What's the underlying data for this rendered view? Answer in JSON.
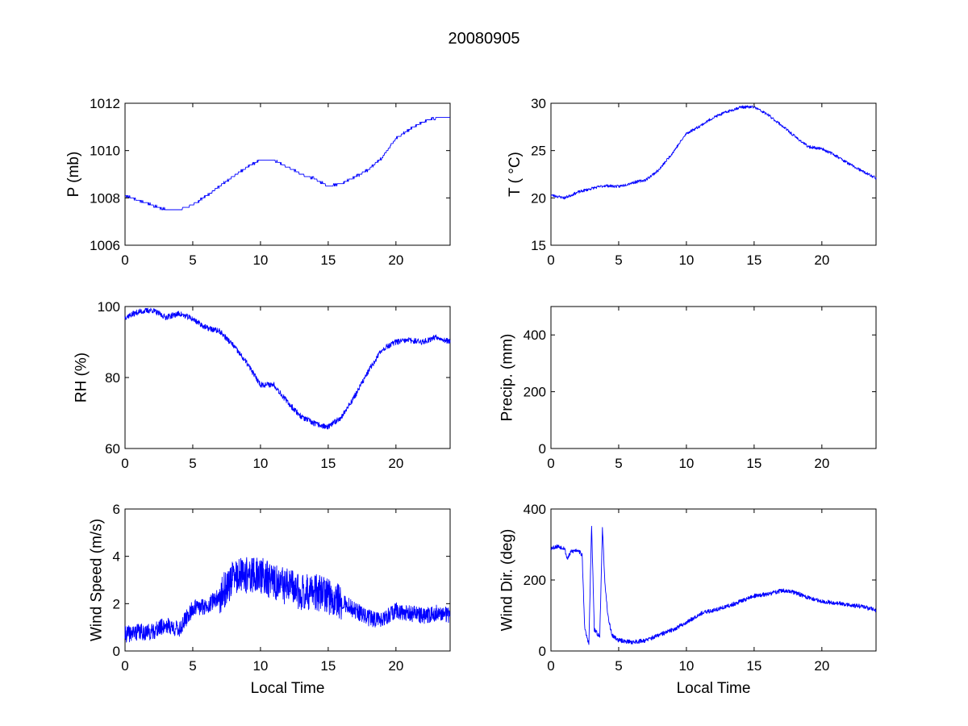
{
  "figure": {
    "title": "20080905"
  },
  "colors": {
    "line": "#0000ff",
    "axes": "#000000",
    "background": "#ffffff"
  },
  "chart_data": [
    {
      "id": "pressure",
      "type": "line",
      "panel": "row1-left",
      "title": "",
      "xlabel": "",
      "ylabel": "P (mb)",
      "xlim": [
        0,
        24
      ],
      "ylim": [
        1006,
        1012
      ],
      "xticks": [
        0,
        5,
        10,
        15,
        20
      ],
      "yticks": [
        1006,
        1008,
        1010,
        1012
      ],
      "grid": false,
      "x": [
        0,
        1,
        2,
        3,
        4,
        5,
        6,
        7,
        8,
        9,
        10,
        11,
        12,
        13,
        14,
        15,
        16,
        17,
        18,
        19,
        20,
        21,
        22,
        23,
        24
      ],
      "y": [
        1008.1,
        1007.9,
        1007.7,
        1007.5,
        1007.5,
        1007.7,
        1008.1,
        1008.5,
        1008.9,
        1009.3,
        1009.6,
        1009.6,
        1009.3,
        1009.0,
        1008.8,
        1008.5,
        1008.6,
        1008.9,
        1009.2,
        1009.7,
        1010.5,
        1010.9,
        1011.2,
        1011.4,
        1011.4
      ]
    },
    {
      "id": "temperature",
      "type": "line",
      "panel": "row1-right",
      "title": "",
      "xlabel": "",
      "ylabel": "T ( °C)",
      "xlim": [
        0,
        24
      ],
      "ylim": [
        15,
        30
      ],
      "xticks": [
        0,
        5,
        10,
        15,
        20
      ],
      "yticks": [
        15,
        20,
        25,
        30
      ],
      "grid": false,
      "x": [
        0,
        1,
        2,
        3,
        4,
        5,
        6,
        7,
        8,
        9,
        10,
        11,
        12,
        13,
        14,
        15,
        16,
        17,
        18,
        19,
        20,
        21,
        22,
        23,
        24
      ],
      "y": [
        20.3,
        20.0,
        20.6,
        21.0,
        21.3,
        21.2,
        21.6,
        21.9,
        23.0,
        24.8,
        26.8,
        27.6,
        28.5,
        29.1,
        29.6,
        29.6,
        28.8,
        27.7,
        26.5,
        25.4,
        25.2,
        24.5,
        23.6,
        22.8,
        22.1
      ]
    },
    {
      "id": "humidity",
      "type": "line",
      "panel": "row2-left",
      "title": "",
      "xlabel": "",
      "ylabel": "RH (%)",
      "xlim": [
        0,
        24
      ],
      "ylim": [
        60,
        100
      ],
      "xticks": [
        0,
        5,
        10,
        15,
        20
      ],
      "yticks": [
        60,
        80,
        100
      ],
      "grid": false,
      "x": [
        0,
        1,
        2,
        3,
        4,
        5,
        6,
        7,
        8,
        9,
        10,
        11,
        12,
        13,
        14,
        15,
        16,
        17,
        18,
        19,
        20,
        21,
        22,
        23,
        24
      ],
      "y": [
        97,
        98.5,
        99,
        97,
        98,
        96.5,
        94,
        93,
        89,
        84,
        78,
        78,
        73,
        69,
        67,
        66,
        69,
        75,
        82,
        88,
        90,
        90.5,
        90,
        91.5,
        90
      ]
    },
    {
      "id": "precipitation",
      "type": "line",
      "panel": "row2-right",
      "title": "",
      "xlabel": "",
      "ylabel": "Precip. (mm)",
      "xlim": [
        0,
        24
      ],
      "ylim": [
        0,
        500
      ],
      "xticks": [
        0,
        5,
        10,
        15,
        20
      ],
      "yticks": [
        0,
        200,
        400
      ],
      "grid": false,
      "x": [],
      "y": []
    },
    {
      "id": "wind-speed",
      "type": "line",
      "panel": "row3-left",
      "title": "",
      "xlabel": "Local Time",
      "ylabel": "Wind Speed (m/s)",
      "xlim": [
        0,
        24
      ],
      "ylim": [
        0,
        6
      ],
      "xticks": [
        0,
        5,
        10,
        15,
        20
      ],
      "yticks": [
        0,
        2,
        4,
        6
      ],
      "grid": false,
      "x": [
        0,
        1,
        2,
        3,
        4,
        5,
        6,
        7,
        8,
        9,
        10,
        11,
        12,
        13,
        14,
        15,
        16,
        17,
        18,
        19,
        20,
        21,
        22,
        23,
        24
      ],
      "y": [
        0.7,
        0.8,
        0.8,
        1.1,
        0.9,
        1.8,
        1.9,
        2.3,
        3.1,
        3.2,
        3.2,
        2.9,
        2.7,
        2.5,
        2.5,
        2.3,
        2.1,
        1.7,
        1.4,
        1.3,
        1.7,
        1.6,
        1.5,
        1.6,
        1.5
      ]
    },
    {
      "id": "wind-direction",
      "type": "line",
      "panel": "row3-right",
      "title": "",
      "xlabel": "Local Time",
      "ylabel": "Wind Dir. (deg)",
      "xlim": [
        0,
        24
      ],
      "ylim": [
        0,
        400
      ],
      "xticks": [
        0,
        5,
        10,
        15,
        20
      ],
      "yticks": [
        0,
        200,
        400
      ],
      "grid": false,
      "x": [
        0,
        0.5,
        1.0,
        1.2,
        1.5,
        2.0,
        2.3,
        2.5,
        2.8,
        3.0,
        3.2,
        3.6,
        3.8,
        4.0,
        4.2,
        4.5,
        5.0,
        6.0,
        7.0,
        8.0,
        9.0,
        10.0,
        11.0,
        12.0,
        13.0,
        14.0,
        15.0,
        16.0,
        17.0,
        18.0,
        19.0,
        20.0,
        21.0,
        22.0,
        23.0,
        24.0
      ],
      "y": [
        290,
        295,
        290,
        260,
        280,
        285,
        270,
        60,
        20,
        355,
        60,
        40,
        345,
        180,
        100,
        45,
        30,
        25,
        30,
        45,
        60,
        80,
        105,
        115,
        125,
        140,
        155,
        160,
        170,
        165,
        150,
        140,
        135,
        130,
        125,
        115
      ]
    }
  ]
}
